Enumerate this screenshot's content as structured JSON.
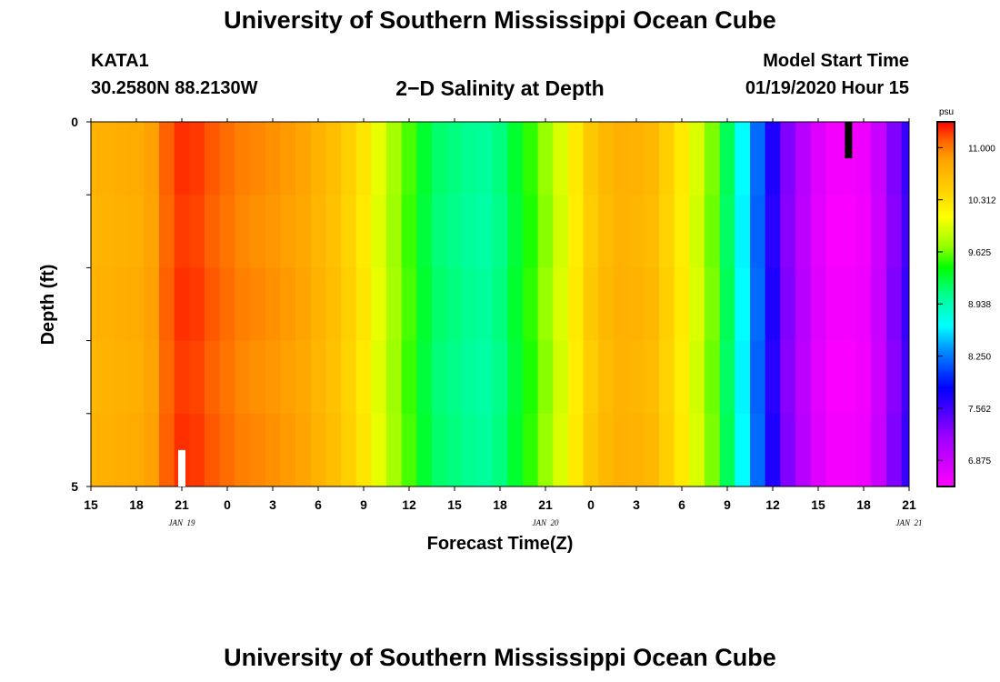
{
  "header": {
    "title_top": "University of Southern Mississippi Ocean Cube",
    "station": "KATA1",
    "location": "30.2580N 88.2130W",
    "plot_title": "2−D Salinity at Depth",
    "model_label": "Model Start Time",
    "model_time": "01/19/2020 Hour 15",
    "title_bottom": "University of Southern Mississippi Ocean Cube"
  },
  "chart_data": {
    "type": "heatmap",
    "title": "2−D Salinity at Depth",
    "xlabel": "Forecast Time(Z)",
    "ylabel": "Depth (ft)",
    "x_ticks": [
      "15",
      "18",
      "21",
      "0",
      "3",
      "6",
      "9",
      "12",
      "15",
      "18",
      "21",
      "0",
      "3",
      "6",
      "9",
      "12",
      "15",
      "18",
      "21"
    ],
    "date_labels": [
      {
        "text": "JAN 19",
        "x_hours": 6
      },
      {
        "text": "JAN 20",
        "x_hours": 30
      },
      {
        "text": "JAN 21",
        "x_hours": 54
      }
    ],
    "x_range_hours": [
      0,
      54
    ],
    "y_ticks": [
      "0",
      "5"
    ],
    "y_range_ft": [
      0,
      5
    ],
    "colorbar": {
      "unit": "psu",
      "ticks": [
        "11.000",
        "10.312",
        "9.625",
        "8.938",
        "8.250",
        "7.562",
        "6.875"
      ],
      "tick_values": [
        11.0,
        10.312,
        9.625,
        8.938,
        8.25,
        7.562,
        6.875
      ],
      "range": [
        6.53,
        11.34
      ]
    },
    "salinity_by_hour": [
      10.7,
      10.72,
      10.74,
      10.76,
      10.85,
      11.1,
      11.22,
      11.2,
      11.12,
      11.05,
      10.98,
      10.95,
      10.92,
      10.88,
      10.82,
      10.7,
      10.6,
      10.45,
      10.28,
      10.0,
      9.75,
      9.55,
      9.3,
      9.15,
      9.1,
      9.05,
      9.02,
      9.1,
      9.3,
      9.5,
      9.7,
      9.95,
      10.25,
      10.5,
      10.65,
      10.72,
      10.7,
      10.65,
      10.45,
      10.25,
      9.95,
      9.65,
      9.2,
      8.65,
      8.2,
      7.7,
      7.3,
      7.0,
      6.75,
      6.6,
      6.6,
      6.65,
      6.9,
      7.3,
      7.6
    ],
    "markers": [
      {
        "name": "white-marker",
        "x_hours": 6,
        "depth_from_ft": 4.5,
        "depth_to_ft": 5.0,
        "color": "#ffffff"
      },
      {
        "name": "black-marker",
        "x_hours": 50,
        "depth_from_ft": 0.0,
        "depth_to_ft": 0.5,
        "color": "#000000"
      }
    ]
  }
}
